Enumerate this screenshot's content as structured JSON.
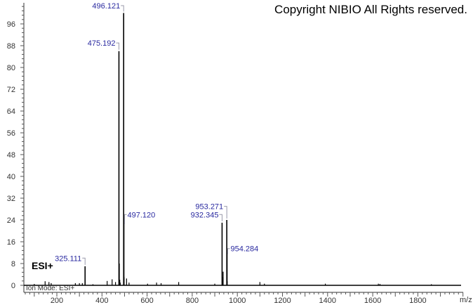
{
  "copyright": "Copyright NIBIO All Rights reserved.",
  "chart_data": {
    "type": "bar",
    "title": "",
    "xlabel": "m/z",
    "ylabel": "",
    "xlim": [
      54,
      2000
    ],
    "ylim": [
      0,
      103
    ],
    "x_ticks": [
      200,
      400,
      600,
      800,
      1000,
      1200,
      1400,
      1600,
      1800
    ],
    "y_ticks": [
      0,
      8,
      16,
      24,
      32,
      40,
      48,
      56,
      64,
      72,
      80,
      88,
      96
    ],
    "annotation": "ESI+",
    "ion_mode_label": "Ion Mode: ESI+",
    "labeled_peaks": [
      {
        "mz": 325.111,
        "intensity": 7,
        "label": "325.111"
      },
      {
        "mz": 475.192,
        "intensity": 86,
        "label": "475.192"
      },
      {
        "mz": 496.121,
        "intensity": 100,
        "label": "496.121"
      },
      {
        "mz": 497.12,
        "intensity": 23,
        "label": "497.120"
      },
      {
        "mz": 932.345,
        "intensity": 23,
        "label": "932.345"
      },
      {
        "mz": 953.271,
        "intensity": 24,
        "label": "953.271"
      },
      {
        "mz": 954.284,
        "intensity": 12,
        "label": "954.284"
      }
    ],
    "minor_peaks": [
      {
        "mz": 100,
        "intensity": 0.5
      },
      {
        "mz": 148,
        "intensity": 1.5
      },
      {
        "mz": 165,
        "intensity": 1.2
      },
      {
        "mz": 175,
        "intensity": 0.8
      },
      {
        "mz": 282,
        "intensity": 0.8
      },
      {
        "mz": 300,
        "intensity": 0.8
      },
      {
        "mz": 313,
        "intensity": 0.8
      },
      {
        "mz": 360,
        "intensity": 0.4
      },
      {
        "mz": 423,
        "intensity": 1.6
      },
      {
        "mz": 445,
        "intensity": 2.2
      },
      {
        "mz": 460,
        "intensity": 1.2
      },
      {
        "mz": 477,
        "intensity": 8
      },
      {
        "mz": 479,
        "intensity": 2
      },
      {
        "mz": 481,
        "intensity": 1
      },
      {
        "mz": 498,
        "intensity": 3
      },
      {
        "mz": 509,
        "intensity": 2.5
      },
      {
        "mz": 520,
        "intensity": 1
      },
      {
        "mz": 602,
        "intensity": 0.6
      },
      {
        "mz": 642,
        "intensity": 1
      },
      {
        "mz": 662,
        "intensity": 0.8
      },
      {
        "mz": 740,
        "intensity": 1.2
      },
      {
        "mz": 900,
        "intensity": 0.6
      },
      {
        "mz": 934,
        "intensity": 3
      },
      {
        "mz": 937,
        "intensity": 5
      },
      {
        "mz": 955,
        "intensity": 1.5
      },
      {
        "mz": 1100,
        "intensity": 1.2
      },
      {
        "mz": 1120,
        "intensity": 0.6
      },
      {
        "mz": 1390,
        "intensity": 0.6
      },
      {
        "mz": 1625,
        "intensity": 0.6
      },
      {
        "mz": 1632,
        "intensity": 0.5
      },
      {
        "mz": 1860,
        "intensity": 0.4
      }
    ]
  }
}
